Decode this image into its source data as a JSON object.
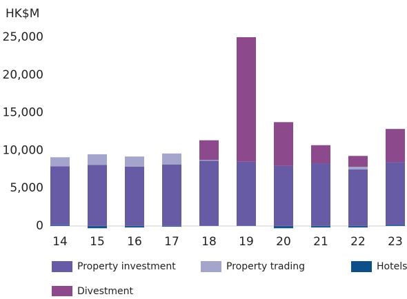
{
  "chart_data": {
    "type": "stacked_bar",
    "y_label": "HK$M",
    "categories": [
      "14",
      "15",
      "16",
      "17",
      "18",
      "19",
      "20",
      "21",
      "22",
      "23"
    ],
    "series": [
      {
        "name": "Property investment",
        "color": "#685ba6",
        "values": [
          7800,
          8100,
          7850,
          8150,
          8600,
          8450,
          7950,
          8300,
          7480,
          8300
        ]
      },
      {
        "name": "Property trading",
        "color": "#a3a5cc",
        "values": [
          1200,
          1400,
          1350,
          1450,
          100,
          0,
          0,
          0,
          350,
          0
        ]
      },
      {
        "name": "Hotels",
        "color": "#0d4f8b",
        "values": [
          100,
          -300,
          -200,
          -100,
          50,
          50,
          -300,
          -200,
          -200,
          150
        ]
      },
      {
        "name": "Divestment",
        "color": "#8c4a8d",
        "values": [
          0,
          0,
          0,
          0,
          2600,
          16500,
          5800,
          2400,
          1450,
          4400
        ]
      }
    ],
    "ylim": [
      -500,
      25000
    ],
    "yticks": [
      0,
      {
        "value": 5000,
        "label": "5,000"
      },
      {
        "value": 10000,
        "label": "10,000"
      },
      {
        "value": 15000,
        "label": "15,000"
      },
      {
        "value": 20000,
        "label": "20,000"
      },
      {
        "value": 25000,
        "label": "25,000"
      }
    ],
    "grid": false,
    "legend": "bottom"
  }
}
